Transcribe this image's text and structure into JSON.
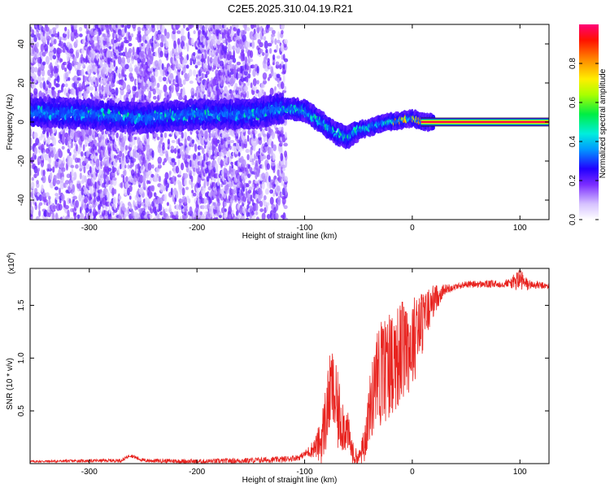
{
  "title": "C2E5.2025.310.04.19.R21",
  "chart_data": [
    {
      "type": "heatmap",
      "name": "spectrogram",
      "xlabel": "Height of straight line (km)",
      "ylabel": "Frequency (Hz)",
      "xlim": [
        -355,
        127
      ],
      "ylim": [
        -50,
        50
      ],
      "xticks": [
        -300,
        -200,
        -100,
        0,
        100
      ],
      "yticks": [
        -40,
        -20,
        0,
        20,
        40
      ],
      "xtick_labels": [
        "-300",
        "-200",
        "-100",
        "0",
        "100"
      ],
      "ytick_labels": [
        "-40",
        "-20",
        "0",
        "20",
        "40"
      ],
      "ridge": {
        "x": [
          -355,
          -300,
          -250,
          -200,
          -150,
          -120,
          -100,
          -90,
          -80,
          -70,
          -60,
          -50,
          -40,
          -30,
          -20,
          -10,
          0,
          10,
          20,
          127
        ],
        "f": [
          5,
          4,
          2,
          4,
          4,
          7,
          6,
          2,
          -2,
          -6,
          -8,
          -4,
          -3,
          -1,
          0,
          1,
          2,
          0,
          0,
          0
        ]
      },
      "noise_region_xlim": [
        -355,
        -118
      ],
      "colorbar": {
        "label": "Normalized spectral amplitude",
        "range": [
          0,
          1
        ],
        "ticks": [
          0.0,
          0.2,
          0.4,
          0.6,
          0.8
        ],
        "tick_labels": [
          "0.0",
          "0.2",
          "0.4",
          "0.6",
          "0.8"
        ]
      }
    },
    {
      "type": "line",
      "name": "snr",
      "xlabel": "Height of straight line (km)",
      "ylabel": "SNR (10 * v/v)",
      "multiplier_label": "(x10",
      "multiplier_exp": "4",
      "multiplier_close": ")",
      "xlim": [
        -355,
        127
      ],
      "ylim": [
        0,
        1.85
      ],
      "xticks": [
        -300,
        -200,
        -100,
        0,
        100
      ],
      "yticks": [
        0.5,
        1.0,
        1.5
      ],
      "xtick_labels": [
        "-300",
        "-200",
        "-100",
        "0",
        "100"
      ],
      "ytick_labels": [
        "0.5",
        "1.0",
        "1.5"
      ],
      "color": "#e8231f",
      "envelope": {
        "x": [
          -355,
          -270,
          -262,
          -250,
          -200,
          -150,
          -120,
          -105,
          -95,
          -85,
          -80,
          -75,
          -70,
          -65,
          -60,
          -55,
          -50,
          -45,
          -40,
          -35,
          -30,
          -20,
          -10,
          0,
          10,
          20,
          30,
          50,
          80,
          95,
          100,
          105,
          127
        ],
        "y": [
          0.02,
          0.03,
          0.08,
          0.03,
          0.02,
          0.03,
          0.04,
          0.06,
          0.12,
          0.2,
          0.45,
          0.75,
          0.5,
          0.4,
          0.3,
          0.08,
          0.05,
          0.15,
          0.5,
          0.7,
          0.85,
          0.95,
          1.05,
          1.15,
          1.35,
          1.55,
          1.65,
          1.7,
          1.7,
          1.72,
          1.75,
          1.7,
          1.68
        ]
      },
      "spike_amplitude": {
        "x": [
          -355,
          -100,
          -90,
          -80,
          -70,
          -60,
          -50,
          -40,
          -30,
          -20,
          -10,
          0,
          10,
          20,
          30,
          40,
          90,
          100,
          110,
          127
        ],
        "a": [
          0.01,
          0.03,
          0.1,
          0.35,
          0.4,
          0.2,
          0.05,
          0.3,
          0.55,
          0.5,
          0.5,
          0.45,
          0.3,
          0.15,
          0.05,
          0.03,
          0.04,
          0.12,
          0.04,
          0.03
        ]
      }
    }
  ]
}
